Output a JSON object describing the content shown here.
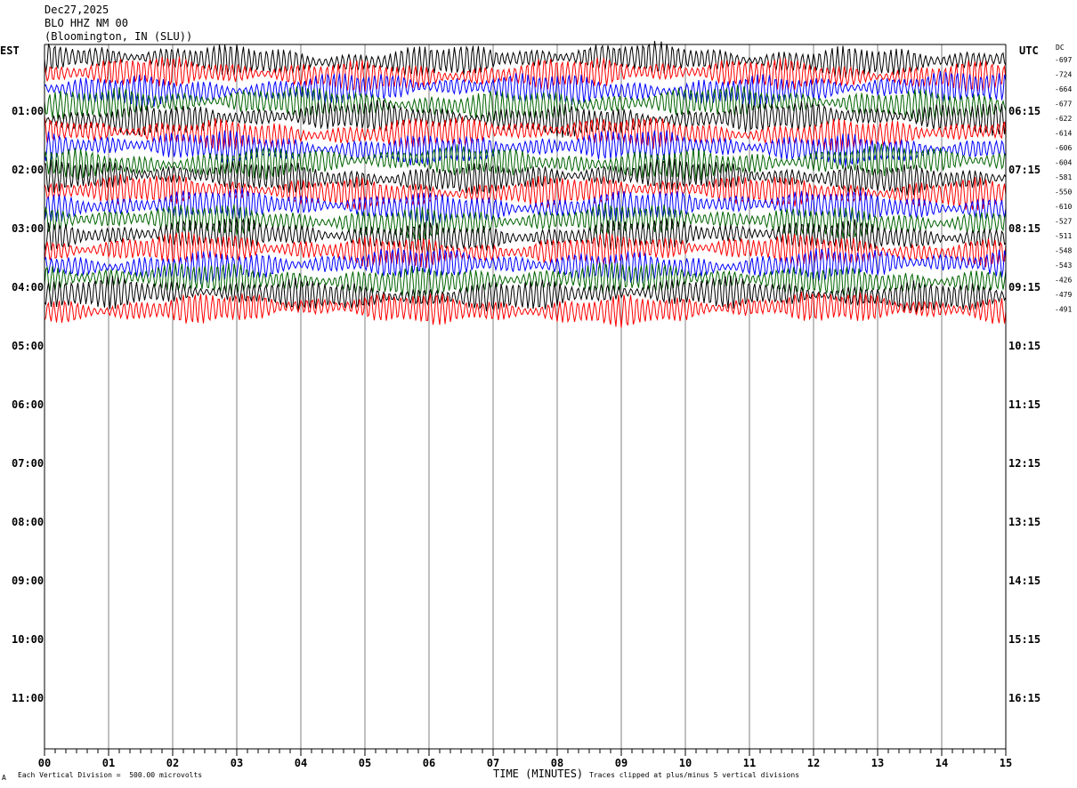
{
  "header": {
    "date": "Dec27,2025",
    "station": "BLO HHZ NM 00",
    "location": "(Bloomington, IN (SLU))"
  },
  "left_axis_title": "EST",
  "right_axis_title": "UTC",
  "dc_label": "DC",
  "footer": {
    "marker": "A",
    "scale_note": "Each Vertical Division =  500.00 microvolts",
    "clip_note": "Traces clipped at plus/minus 5 vertical divisions"
  },
  "colors": {
    "black": "#000000",
    "red": "#ff0000",
    "blue": "#0000ff",
    "green": "#006400",
    "grid": "#808080"
  },
  "chart_data": {
    "type": "line",
    "xlabel": "TIME (MINUTES)",
    "x_ticks": [
      "00",
      "01",
      "02",
      "03",
      "04",
      "05",
      "06",
      "07",
      "08",
      "09",
      "10",
      "11",
      "12",
      "13",
      "14",
      "15"
    ],
    "xlim": [
      0,
      15
    ],
    "trace_color_cycle": [
      "black",
      "red",
      "blue",
      "green"
    ],
    "hour_rows": [
      {
        "est": "01:00",
        "utc": "06:15"
      },
      {
        "est": "02:00",
        "utc": "07:15"
      },
      {
        "est": "03:00",
        "utc": "08:15"
      },
      {
        "est": "04:00",
        "utc": "09:15"
      },
      {
        "est": "05:00",
        "utc": "10:15"
      },
      {
        "est": "06:00",
        "utc": "11:15"
      },
      {
        "est": "07:00",
        "utc": "12:15"
      },
      {
        "est": "08:00",
        "utc": "13:15"
      },
      {
        "est": "09:00",
        "utc": "14:15"
      },
      {
        "est": "10:00",
        "utc": "15:15"
      },
      {
        "est": "11:00",
        "utc": "16:15"
      }
    ],
    "dc_offsets": [
      "-697",
      "-724",
      "-664",
      "-677",
      "-622",
      "-614",
      "-606",
      "-604",
      "-581",
      "-550",
      "-610",
      "-527",
      "-511",
      "-548",
      "-543",
      "-426",
      "-479",
      "-491"
    ]
  }
}
